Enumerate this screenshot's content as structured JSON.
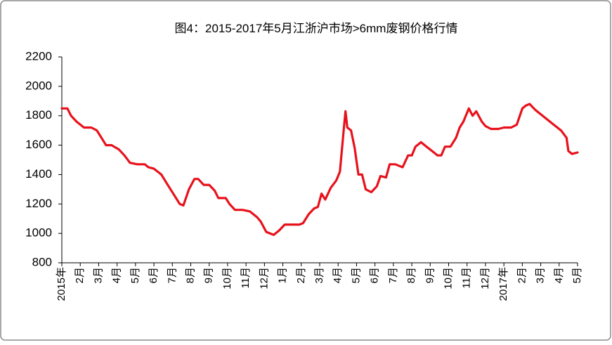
{
  "chart_data": {
    "type": "line",
    "title": "图4：2015-2017年5月江浙沪市场>6mm废钢价格行情",
    "categories": [
      "2015年",
      "2月",
      "3月",
      "4月",
      "5月",
      "6月",
      "7月",
      "8月",
      "9月",
      "10月",
      "11月",
      "12月",
      "1月",
      "2月",
      "3月",
      "4月",
      "5月",
      "6月",
      "7月",
      "8月",
      "9月",
      "10月",
      "11月",
      "12月",
      "2017年",
      "2月",
      "3月",
      "4月",
      "5月"
    ],
    "xlim": [
      0,
      28
    ],
    "ylim": [
      800,
      2200
    ],
    "yticks": [
      800,
      1000,
      1200,
      1400,
      1600,
      1800,
      2000,
      2200
    ],
    "grid": false,
    "series": [
      {
        "color": "#e8111b",
        "x": [
          0,
          0.3,
          0.5,
          0.8,
          1.2,
          1.6,
          1.9,
          2.2,
          2.4,
          2.7,
          3.1,
          3.4,
          3.7,
          4.1,
          4.5,
          4.7,
          5.0,
          5.4,
          5.8,
          6.1,
          6.4,
          6.6,
          6.9,
          7.2,
          7.4,
          7.7,
          8.0,
          8.3,
          8.5,
          8.9,
          9.1,
          9.4,
          9.8,
          10.2,
          10.6,
          10.8,
          11.1,
          11.5,
          11.8,
          12.1,
          12.5,
          12.9,
          13.1,
          13.4,
          13.7,
          13.9,
          14.1,
          14.3,
          14.6,
          14.9,
          15.1,
          15.3,
          15.4,
          15.5,
          15.7,
          15.9,
          16.1,
          16.3,
          16.5,
          16.8,
          17.1,
          17.3,
          17.6,
          17.8,
          18.1,
          18.5,
          18.8,
          19.0,
          19.2,
          19.5,
          19.8,
          20.1,
          20.4,
          20.6,
          20.8,
          21.1,
          21.4,
          21.6,
          21.8,
          22.1,
          22.3,
          22.5,
          22.8,
          23.0,
          23.3,
          23.7,
          24.0,
          24.4,
          24.7,
          25.0,
          25.2,
          25.4,
          25.7,
          26.0,
          26.3,
          26.6,
          26.9,
          27.1,
          27.4,
          27.5,
          27.7,
          28.0
        ],
        "values": [
          1850,
          1850,
          1800,
          1760,
          1720,
          1720,
          1700,
          1640,
          1600,
          1600,
          1570,
          1530,
          1480,
          1470,
          1470,
          1450,
          1440,
          1400,
          1320,
          1260,
          1200,
          1190,
          1300,
          1370,
          1370,
          1330,
          1330,
          1290,
          1240,
          1240,
          1200,
          1160,
          1160,
          1150,
          1110,
          1080,
          1010,
          990,
          1020,
          1060,
          1060,
          1060,
          1070,
          1130,
          1170,
          1180,
          1270,
          1230,
          1310,
          1360,
          1420,
          1700,
          1830,
          1720,
          1700,
          1580,
          1400,
          1400,
          1300,
          1280,
          1320,
          1390,
          1380,
          1470,
          1470,
          1450,
          1530,
          1530,
          1590,
          1620,
          1590,
          1560,
          1530,
          1530,
          1590,
          1590,
          1650,
          1720,
          1760,
          1850,
          1800,
          1830,
          1760,
          1730,
          1710,
          1710,
          1720,
          1720,
          1740,
          1850,
          1870,
          1880,
          1840,
          1810,
          1780,
          1750,
          1720,
          1700,
          1650,
          1560,
          1540,
          1550
        ]
      }
    ]
  }
}
